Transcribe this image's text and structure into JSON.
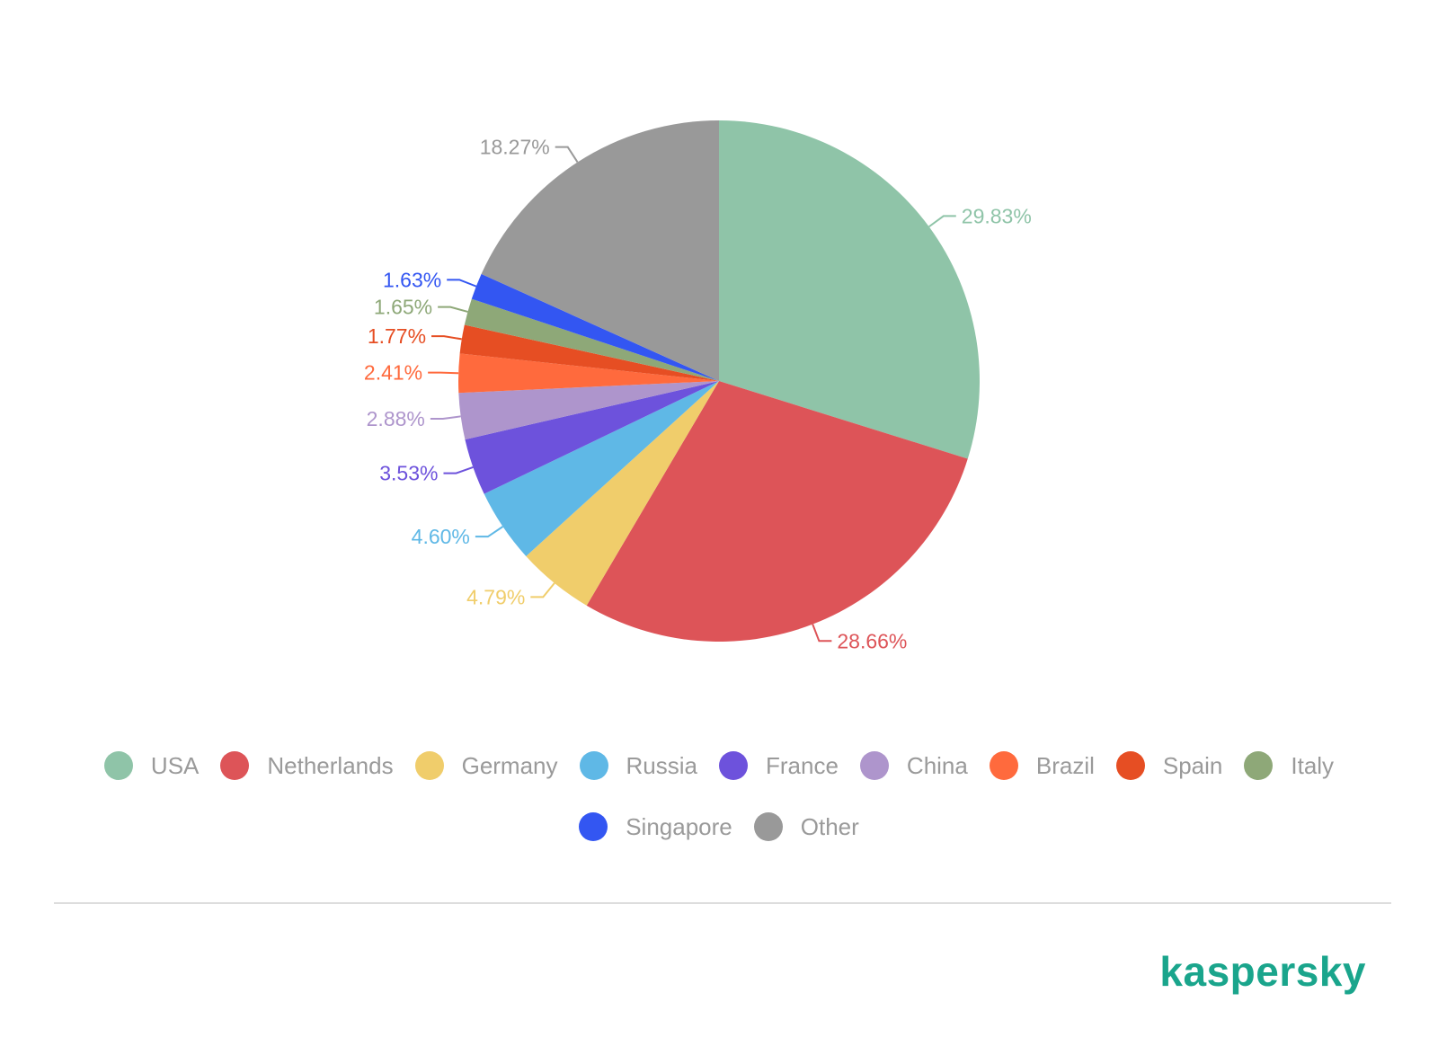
{
  "chart_data": {
    "type": "pie",
    "start_angle_deg": 0,
    "direction": "clockwise",
    "slices": [
      {
        "name": "USA",
        "value": 29.83,
        "label": "29.83%",
        "color": "#8fc4a8"
      },
      {
        "name": "Netherlands",
        "value": 28.66,
        "label": "28.66%",
        "color": "#dd5458"
      },
      {
        "name": "Germany",
        "value": 4.79,
        "label": "4.79%",
        "color": "#f0cd6b"
      },
      {
        "name": "Russia",
        "value": 4.6,
        "label": "4.60%",
        "color": "#5fb8e6"
      },
      {
        "name": "France",
        "value": 3.53,
        "label": "3.53%",
        "color": "#6d52dc"
      },
      {
        "name": "China",
        "value": 2.88,
        "label": "2.88%",
        "color": "#ae95cc"
      },
      {
        "name": "Brazil",
        "value": 2.41,
        "label": "2.41%",
        "color": "#ff6a3d"
      },
      {
        "name": "Spain",
        "value": 1.77,
        "label": "1.77%",
        "color": "#e64e23"
      },
      {
        "name": "Italy",
        "value": 1.65,
        "label": "1.65%",
        "color": "#8ea878"
      },
      {
        "name": "Singapore",
        "value": 1.63,
        "label": "1.63%",
        "color": "#3356f2"
      },
      {
        "name": "Other",
        "value": 18.27,
        "label": "18.27%",
        "color": "#999999"
      }
    ],
    "legend_position": "bottom"
  },
  "brand": {
    "logo_text": "kaspersky",
    "color": "#1aa58c"
  }
}
